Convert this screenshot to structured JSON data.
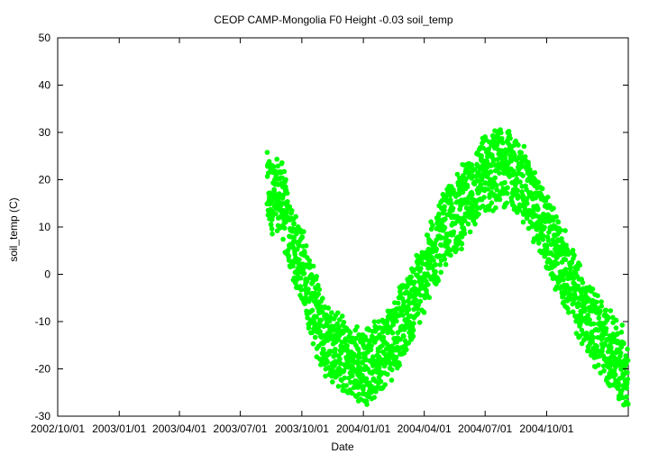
{
  "chart_data": {
    "type": "scatter",
    "title": "CEOP CAMP-Mongolia F0 Height -0.03 soil_temp",
    "xlabel": "Date",
    "ylabel": "soil_temp (C)",
    "x_range": [
      "2002-10-01",
      "2005-01-31"
    ],
    "ylim": [
      -30,
      50
    ],
    "y_ticks": [
      -30,
      -20,
      -10,
      0,
      10,
      20,
      30,
      40,
      50
    ],
    "x_ticks": [
      {
        "date": "2002-10-01",
        "label": "2002/10/01"
      },
      {
        "date": "2003-01-01",
        "label": "2003/01/01"
      },
      {
        "date": "2003-04-01",
        "label": "2003/04/01"
      },
      {
        "date": "2003-07-01",
        "label": "2003/07/01"
      },
      {
        "date": "2003-10-01",
        "label": "2003/10/01"
      },
      {
        "date": "2004-01-01",
        "label": "2004/01/01"
      },
      {
        "date": "2004-04-01",
        "label": "2004/04/01"
      },
      {
        "date": "2004-07-01",
        "label": "2004/07/01"
      },
      {
        "date": "2004-10-01",
        "label": "2004/10/01"
      }
    ],
    "grid": false,
    "marker_color": "#00ff00",
    "series": [
      {
        "date_range": [
          "2003-08-10",
          "2005-01-31"
        ],
        "points": [
          [
            "2003-08-10",
            18
          ],
          [
            "2003-08-15",
            17
          ],
          [
            "2003-08-20",
            16
          ],
          [
            "2003-08-25",
            16
          ],
          [
            "2003-08-31",
            17
          ],
          [
            "2003-09-05",
            14
          ],
          [
            "2003-09-10",
            9
          ],
          [
            "2003-09-15",
            7
          ],
          [
            "2003-09-20",
            5
          ],
          [
            "2003-09-25",
            4
          ],
          [
            "2003-10-01",
            2
          ],
          [
            "2003-10-06",
            0
          ],
          [
            "2003-10-11",
            -3
          ],
          [
            "2003-10-16",
            -6
          ],
          [
            "2003-10-21",
            -8
          ],
          [
            "2003-10-26",
            -10
          ],
          [
            "2003-10-31",
            -12
          ],
          [
            "2003-11-05",
            -13
          ],
          [
            "2003-11-10",
            -14
          ],
          [
            "2003-11-20",
            -15
          ],
          [
            "2003-11-30",
            -17
          ],
          [
            "2003-12-10",
            -18
          ],
          [
            "2003-12-20",
            -19
          ],
          [
            "2003-12-31",
            -19
          ],
          [
            "2004-01-10",
            -19
          ],
          [
            "2004-01-20",
            -18
          ],
          [
            "2004-01-31",
            -16
          ],
          [
            "2004-02-10",
            -14
          ],
          [
            "2004-02-20",
            -12
          ],
          [
            "2004-02-29",
            -10
          ],
          [
            "2004-03-10",
            -7
          ],
          [
            "2004-03-20",
            -4
          ],
          [
            "2004-03-31",
            -1
          ],
          [
            "2004-04-10",
            3
          ],
          [
            "2004-04-20",
            6
          ],
          [
            "2004-04-30",
            9
          ],
          [
            "2004-05-10",
            11
          ],
          [
            "2004-05-20",
            13
          ],
          [
            "2004-05-31",
            15
          ],
          [
            "2004-06-10",
            17
          ],
          [
            "2004-06-20",
            19
          ],
          [
            "2004-06-30",
            21
          ],
          [
            "2004-07-10",
            22
          ],
          [
            "2004-07-20",
            23
          ],
          [
            "2004-07-31",
            23
          ],
          [
            "2004-08-10",
            22
          ],
          [
            "2004-08-20",
            20
          ],
          [
            "2004-08-31",
            18
          ],
          [
            "2004-09-10",
            15
          ],
          [
            "2004-09-20",
            12
          ],
          [
            "2004-09-30",
            9
          ],
          [
            "2004-10-10",
            6
          ],
          [
            "2004-10-20",
            3
          ],
          [
            "2004-10-31",
            0
          ],
          [
            "2004-11-10",
            -3
          ],
          [
            "2004-11-20",
            -6
          ],
          [
            "2004-11-30",
            -9
          ],
          [
            "2004-12-10",
            -11
          ],
          [
            "2004-12-20",
            -13
          ],
          [
            "2004-12-31",
            -15
          ],
          [
            "2005-01-10",
            -17
          ],
          [
            "2005-01-20",
            -19
          ],
          [
            "2005-01-31",
            -21
          ]
        ]
      }
    ]
  }
}
